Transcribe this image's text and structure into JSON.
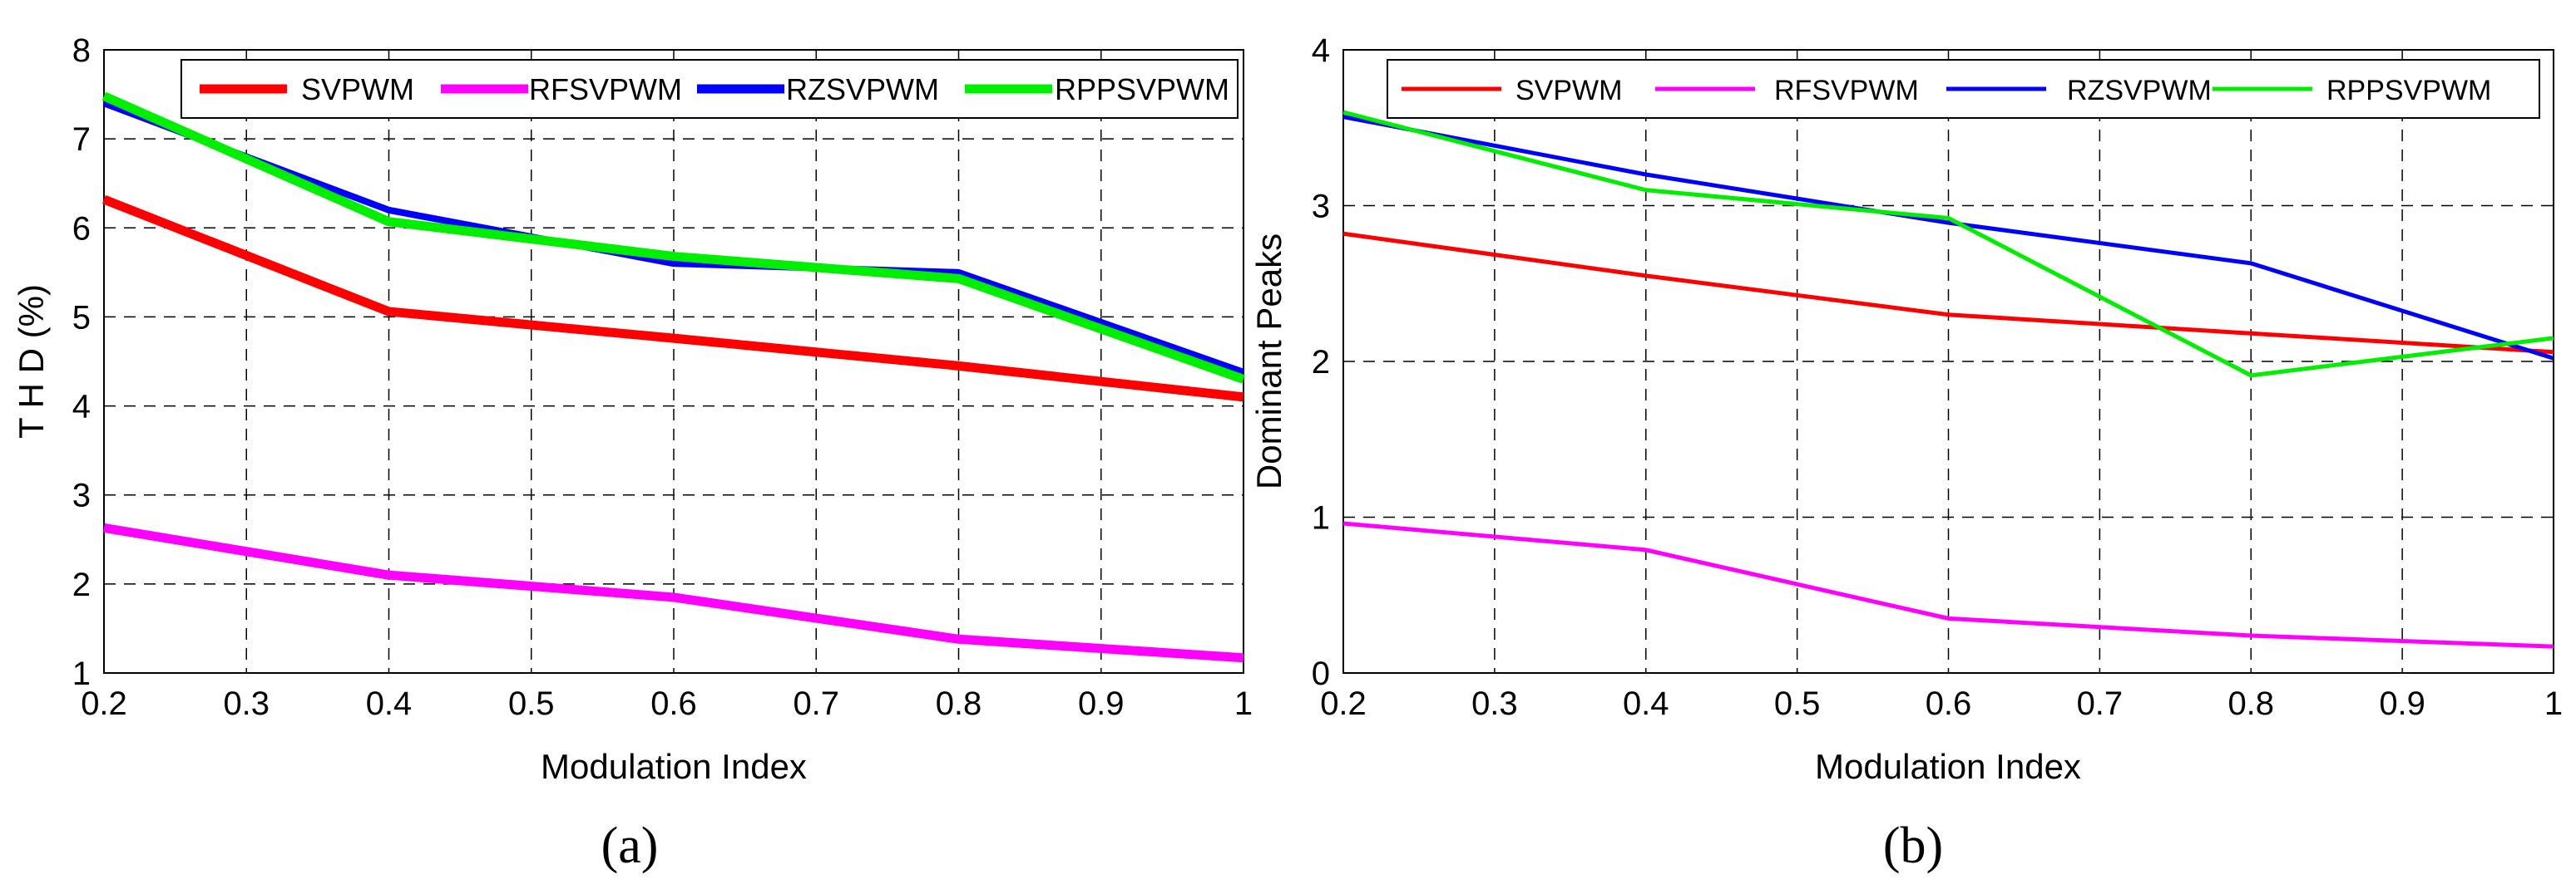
{
  "chart_data": [
    {
      "type": "line",
      "panel_label": "(a)",
      "xlabel": "Modulation Index",
      "ylabel": "T H D (%)",
      "xlim": [
        0.2,
        1
      ],
      "ylim": [
        1,
        8
      ],
      "xticks": [
        "0.2",
        "0.3",
        "0.4",
        "0.5",
        "0.6",
        "0.7",
        "0.8",
        "0.9",
        "1"
      ],
      "yticks": [
        "1",
        "2",
        "3",
        "4",
        "5",
        "6",
        "7",
        "8"
      ],
      "grid": true,
      "legend": "top",
      "x": [
        0.2,
        0.4,
        0.6,
        0.8,
        1.0
      ],
      "series": [
        {
          "name": "SVPWM",
          "color": "#ff0000",
          "values": [
            6.32,
            5.06,
            4.76,
            4.45,
            4.1
          ]
        },
        {
          "name": "RFSVPWM",
          "color": "#ff00ff",
          "values": [
            2.63,
            2.1,
            1.85,
            1.38,
            1.17
          ]
        },
        {
          "name": "RZSVPWM",
          "color": "#0000ff",
          "values": [
            7.4,
            6.2,
            5.6,
            5.5,
            4.38
          ]
        },
        {
          "name": "RPPSVPWM",
          "color": "#00ee00",
          "values": [
            7.48,
            6.07,
            5.68,
            5.43,
            4.3
          ]
        }
      ]
    },
    {
      "type": "line",
      "panel_label": "(b)",
      "xlabel": "Modulation Index",
      "ylabel": "Dominant Peaks",
      "xlim": [
        0.2,
        1
      ],
      "ylim": [
        0,
        4
      ],
      "xticks": [
        "0.2",
        "0.3",
        "0.4",
        "0.5",
        "0.6",
        "0.7",
        "0.8",
        "0.9",
        "1"
      ],
      "yticks": [
        "0",
        "1",
        "2",
        "3",
        "4"
      ],
      "grid": true,
      "legend": "top",
      "x": [
        0.2,
        0.4,
        0.6,
        0.8,
        1.0
      ],
      "series": [
        {
          "name": "SVPWM",
          "color": "#ff0000",
          "values": [
            2.82,
            2.55,
            2.3,
            2.18,
            2.06
          ]
        },
        {
          "name": "RFSVPWM",
          "color": "#ff00ff",
          "values": [
            0.96,
            0.79,
            0.35,
            0.24,
            0.17
          ]
        },
        {
          "name": "RZSVPWM",
          "color": "#0000ff",
          "values": [
            3.57,
            3.2,
            2.89,
            2.63,
            2.02
          ]
        },
        {
          "name": "RPPSVPWM",
          "color": "#00ee00",
          "values": [
            3.6,
            3.1,
            2.92,
            1.91,
            2.15
          ]
        }
      ]
    }
  ]
}
